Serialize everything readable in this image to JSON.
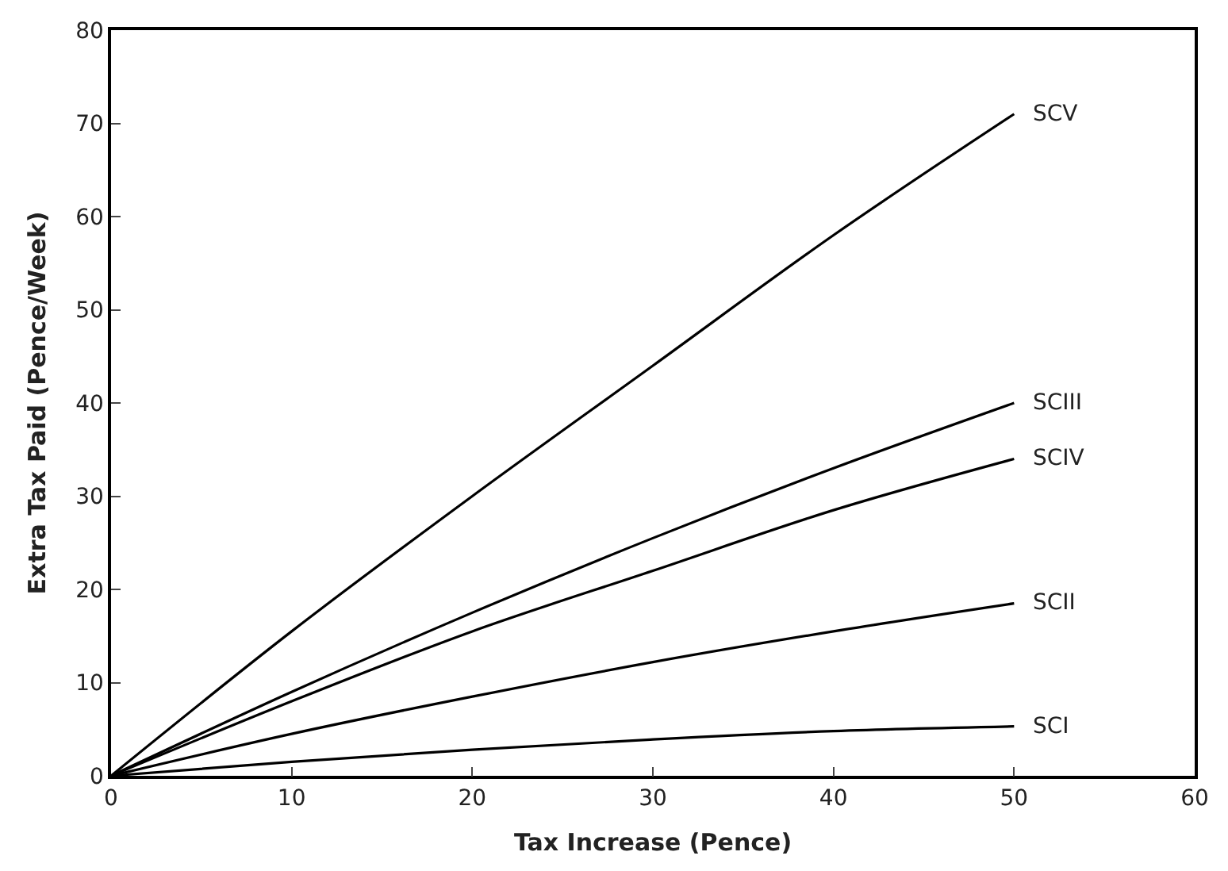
{
  "chart_data": {
    "type": "line",
    "xlabel": "Tax Increase (Pence)",
    "ylabel": "Extra Tax Paid (Pence/Week)",
    "x": [
      0,
      10,
      20,
      30,
      40,
      50
    ],
    "series": [
      {
        "name": "SCV",
        "color": "#000000",
        "values": [
          0,
          15.5,
          30,
          44,
          58,
          71
        ]
      },
      {
        "name": "SCIII",
        "color": "#000000",
        "values": [
          0,
          9,
          17.5,
          25.5,
          33,
          40
        ]
      },
      {
        "name": "SCIV",
        "color": "#000000",
        "values": [
          0,
          8,
          15.5,
          22,
          28.5,
          34
        ]
      },
      {
        "name": "SCII",
        "color": "#000000",
        "values": [
          0,
          4.5,
          8.5,
          12.2,
          15.5,
          18.5
        ]
      },
      {
        "name": "SCI",
        "color": "#000000",
        "values": [
          0,
          1.5,
          2.8,
          3.9,
          4.8,
          5.3
        ]
      }
    ],
    "xlim": [
      0,
      60
    ],
    "xticks": [
      0,
      10,
      20,
      30,
      40,
      50,
      60
    ],
    "ylim": [
      0,
      80
    ],
    "yticks": [
      0,
      10,
      20,
      30,
      40,
      50,
      60,
      70,
      80
    ],
    "legend": false,
    "marker": "none",
    "line_style": "solid"
  }
}
